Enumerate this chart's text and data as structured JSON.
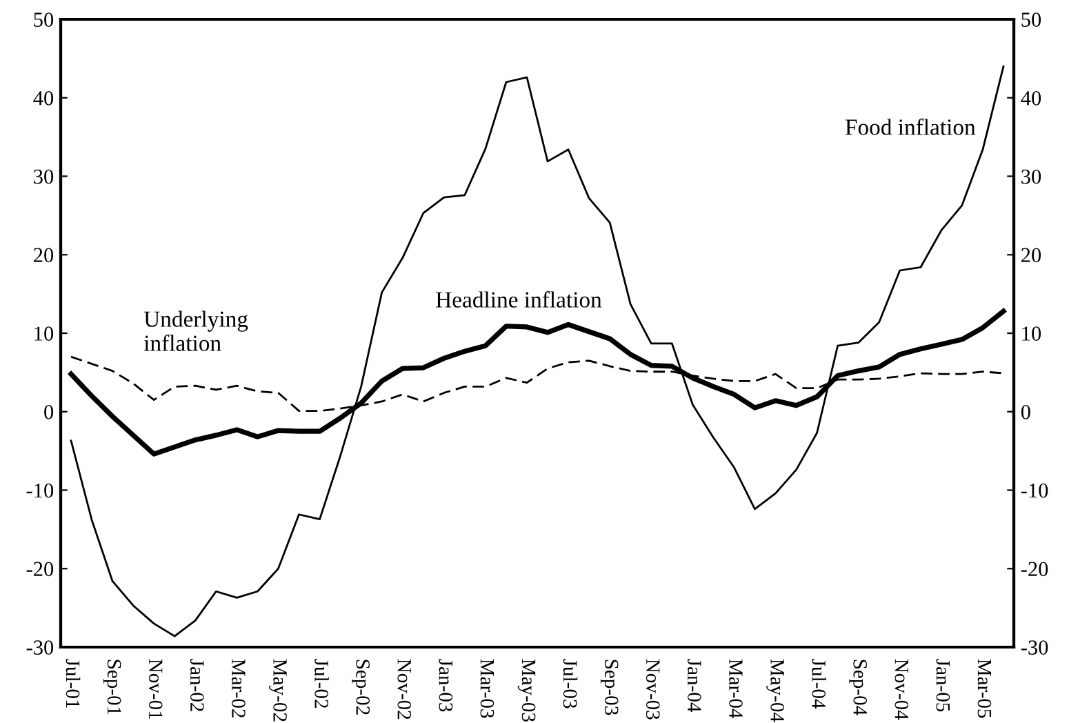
{
  "chart_data": {
    "type": "line",
    "categories": [
      "Jul-01",
      null,
      "Sep-01",
      null,
      "Nov-01",
      null,
      "Jan-02",
      null,
      "Mar-02",
      null,
      "May-02",
      null,
      "Jul-02",
      null,
      "Sep-02",
      null,
      "Nov-02",
      null,
      "Jan-03",
      null,
      "Mar-03",
      null,
      "May-03",
      null,
      "Jul-03",
      null,
      "Sep-03",
      null,
      "Nov-03",
      null,
      "Jan-04",
      null,
      "Mar-04",
      null,
      "May-04",
      null,
      "Jul-04",
      null,
      "Sep-04",
      null,
      "Nov-04",
      null,
      "Jan-05",
      null,
      "Mar-05",
      null
    ],
    "series": [
      {
        "name": "Headline inflation",
        "color": "#000000",
        "line_style": "solid",
        "values": [
          4.8,
          2.0,
          -0.6,
          -3.0,
          -5.4,
          -4.5,
          -3.6,
          -3.0,
          -2.3,
          -3.2,
          -2.4,
          -2.5,
          -2.5,
          -0.8,
          1.1,
          3.9,
          5.5,
          5.6,
          6.8,
          7.7,
          8.4,
          10.9,
          10.8,
          10.1,
          11.1,
          10.2,
          9.3,
          7.3,
          5.9,
          5.8,
          4.3,
          3.2,
          2.2,
          0.5,
          1.4,
          0.8,
          1.9,
          4.6,
          5.2,
          5.7,
          7.3,
          8.0,
          8.6,
          9.2,
          10.7,
          12.8
        ]
      },
      {
        "name": "Food inflation",
        "color": "#000000",
        "line_style": "solid",
        "values": [
          -3.7,
          -13.8,
          -21.6,
          -24.7,
          -27.0,
          -28.6,
          -26.6,
          -22.9,
          -23.7,
          -22.9,
          -20.0,
          -13.1,
          -13.7,
          -5.6,
          3.2,
          15.2,
          19.6,
          25.3,
          27.3,
          27.6,
          33.5,
          42.0,
          42.6,
          31.9,
          33.4,
          27.2,
          24.1,
          13.7,
          8.7,
          8.7,
          0.9,
          -3.3,
          -7.1,
          -12.4,
          -10.4,
          -7.4,
          -2.7,
          8.4,
          8.8,
          11.4,
          18.0,
          18.4,
          23.1,
          26.3,
          33.4,
          44.0
        ]
      },
      {
        "name": "Underlying\ninflation",
        "color": "#000000",
        "line_style": "dashed",
        "values": [
          7.0,
          6.1,
          5.2,
          3.6,
          1.5,
          3.2,
          3.3,
          2.8,
          3.3,
          2.6,
          2.4,
          0.1,
          0.1,
          0.4,
          0.8,
          1.3,
          2.2,
          1.3,
          2.4,
          3.2,
          3.2,
          4.3,
          3.7,
          5.5,
          6.3,
          6.5,
          5.8,
          5.2,
          5.1,
          5.1,
          4.6,
          4.2,
          3.9,
          3.9,
          4.8,
          3.0,
          3.0,
          4.1,
          4.1,
          4.2,
          4.5,
          4.9,
          4.8,
          4.8,
          5.1,
          4.9
        ]
      }
    ],
    "ylim": [
      -30,
      50
    ],
    "yticks": [
      -30,
      -20,
      -10,
      0,
      10,
      20,
      30,
      40,
      50
    ],
    "y2lim": [
      -30,
      50
    ],
    "y2ticks": [
      -30,
      -20,
      -10,
      0,
      10,
      20,
      30,
      40,
      50
    ],
    "grid": false,
    "legend": false,
    "marker": "none"
  }
}
